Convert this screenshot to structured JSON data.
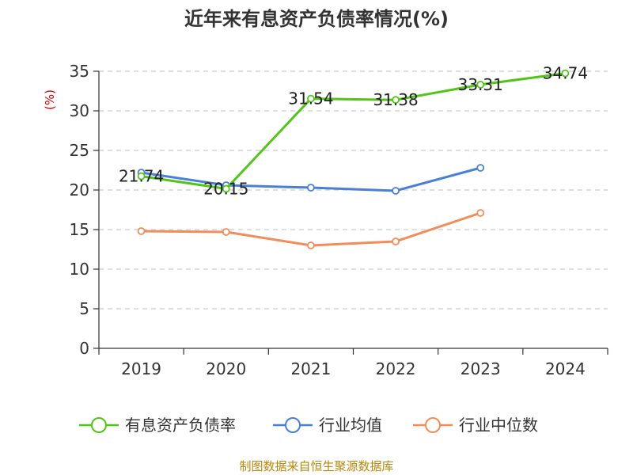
{
  "chart_data": {
    "type": "line",
    "title": "近年来有息资产负债率情况(%)",
    "ylabel": "(%)",
    "xlabel": "",
    "categories": [
      "2019",
      "2020",
      "2021",
      "2022",
      "2023",
      "2024"
    ],
    "ylim": [
      0,
      35
    ],
    "yticks": [
      0,
      5,
      10,
      15,
      20,
      25,
      30,
      35
    ],
    "grid": true,
    "legend_position": "bottom",
    "series": [
      {
        "name": "有息资产负债率",
        "color": "#52c41a",
        "values": [
          21.74,
          20.15,
          31.54,
          31.38,
          33.31,
          34.74
        ],
        "labels": [
          "21.74",
          "20.15",
          "31.54",
          "31.38",
          "33.31",
          "34.74"
        ]
      },
      {
        "name": "行业均值",
        "color": "#4a7fd6",
        "values": [
          22.2,
          20.6,
          20.3,
          19.9,
          22.8,
          null
        ]
      },
      {
        "name": "行业中位数",
        "color": "#f28c5b",
        "values": [
          14.8,
          14.7,
          13.0,
          13.5,
          17.1,
          null
        ]
      }
    ]
  },
  "source": "制图数据来自恒生聚源数据库"
}
